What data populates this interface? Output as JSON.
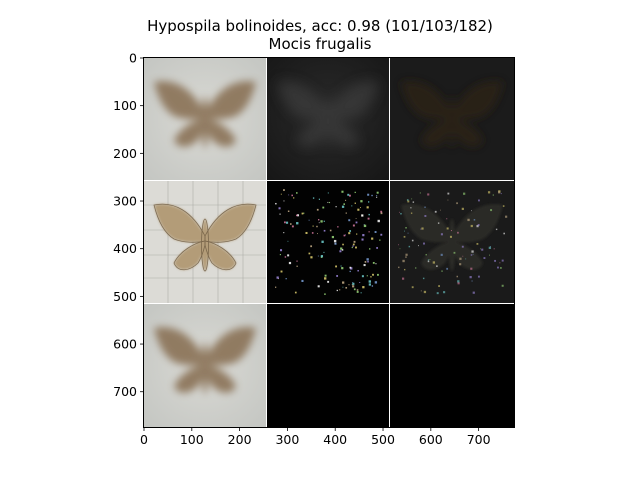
{
  "title": "Hypospila bolinoides, acc: 0.98 (101/103/182)",
  "subtitle": "Mocis frugalis",
  "chart_data": {
    "type": "image-grid",
    "title": "Hypospila bolinoides, acc: 0.98 (101/103/182)",
    "subtitle": "Mocis frugalis",
    "xlim": [
      0,
      774
    ],
    "ylim": [
      774,
      0
    ],
    "x_ticks": [
      0,
      100,
      200,
      300,
      400,
      500,
      600,
      700
    ],
    "y_ticks": [
      0,
      100,
      200,
      300,
      400,
      500,
      600,
      700
    ],
    "grid": "3x3 image tiles, each 258 units, white separators",
    "tiles": [
      {
        "row": 0,
        "col": 0,
        "desc": "blurred moth, light background"
      },
      {
        "row": 0,
        "col": 1,
        "desc": "dark noisy moth silhouette"
      },
      {
        "row": 0,
        "col": 2,
        "desc": "very dark moth silhouette"
      },
      {
        "row": 1,
        "col": 0,
        "desc": "moth specimen photo on grid"
      },
      {
        "row": 1,
        "col": 1,
        "desc": "black with sparse colored speckles"
      },
      {
        "row": 1,
        "col": 2,
        "desc": "dark moth with speckles"
      },
      {
        "row": 2,
        "col": 0,
        "desc": "blurred moth, light background"
      },
      {
        "row": 2,
        "col": 1,
        "desc": "black"
      },
      {
        "row": 2,
        "col": 2,
        "desc": "black"
      }
    ]
  }
}
